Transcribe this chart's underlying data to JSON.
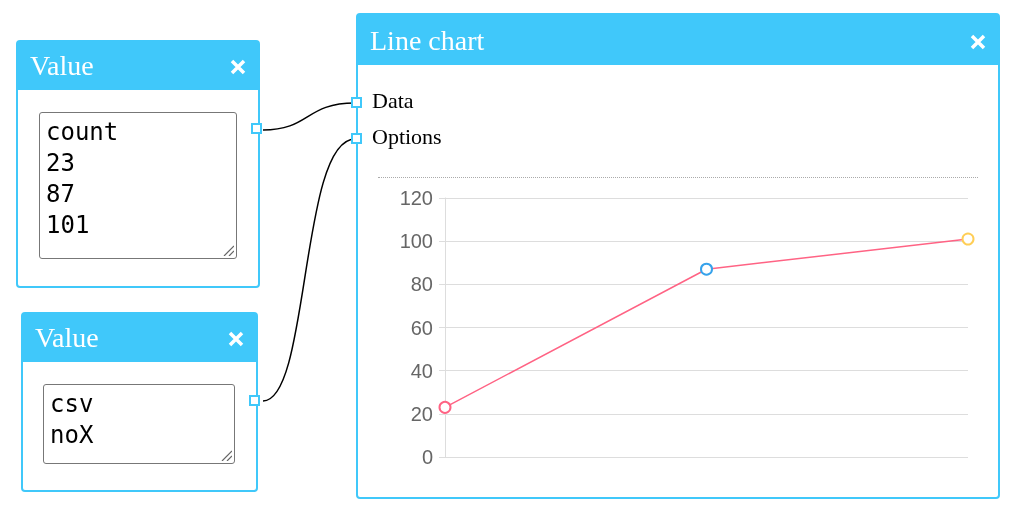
{
  "chart_data": {
    "type": "line",
    "title": "Line chart",
    "categories": [
      null,
      null,
      null
    ],
    "series": [
      {
        "color": "#ff6384",
        "colors": [
          "#ff6384",
          "#36a2eb",
          "#ffce56"
        ],
        "values": [
          23,
          87,
          101
        ]
      }
    ],
    "ylim": [
      0,
      120
    ],
    "yticks": [
      0,
      20,
      40,
      60,
      80,
      100,
      120
    ],
    "grid": "y",
    "marker": "circle",
    "line_style": "solid",
    "annotations": [
      "Value",
      "count\n23\n87\n101",
      "Value",
      "csv\nnoX",
      "Data",
      "Options"
    ]
  }
}
